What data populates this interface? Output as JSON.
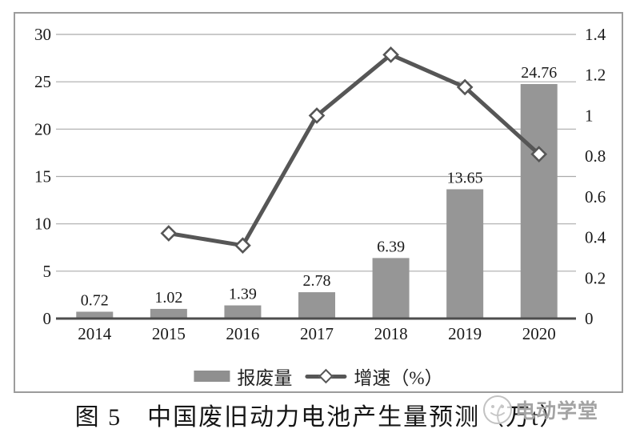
{
  "caption": "图 5　中国废旧动力电池产生量预测（万t）",
  "watermark": {
    "brand": "电动学堂"
  },
  "legend": {
    "items": [
      {
        "label": "报废量",
        "swatch": "bar"
      },
      {
        "label": "增速（%）",
        "swatch": "line-diamond"
      }
    ]
  },
  "chart_data": {
    "type": "bar+line",
    "categories": [
      "2014",
      "2015",
      "2016",
      "2017",
      "2018",
      "2019",
      "2020"
    ],
    "series": [
      {
        "name": "报废量",
        "type": "bar",
        "axis": "left",
        "values": [
          0.72,
          1.02,
          1.39,
          2.78,
          6.39,
          13.65,
          24.76
        ],
        "labels": [
          "0.72",
          "1.02",
          "1.39",
          "2.78",
          "6.39",
          "13.65",
          "24.76"
        ],
        "color": "#969696"
      },
      {
        "name": "增速（%）",
        "type": "line",
        "axis": "right",
        "values": [
          null,
          0.42,
          0.36,
          1.0,
          1.3,
          1.14,
          0.81
        ],
        "color": "#565656",
        "marker": "diamond-white"
      }
    ],
    "left_axis": {
      "min": 0,
      "max": 30,
      "step": 5,
      "ticks": [
        "0",
        "5",
        "10",
        "15",
        "20",
        "25",
        "30"
      ]
    },
    "right_axis": {
      "min": 0,
      "max": 1.4,
      "step": 0.2,
      "ticks": [
        "0",
        "0.2",
        "0.4",
        "0.6",
        "0.8",
        "1",
        "1.2",
        "1.4"
      ]
    },
    "grid": true,
    "legend_position": "bottom",
    "colors": {
      "grid": "#ababab",
      "axis": "#4d4d4d",
      "bar": "#969696",
      "line": "#565656",
      "text": "#1a1a1a"
    }
  }
}
